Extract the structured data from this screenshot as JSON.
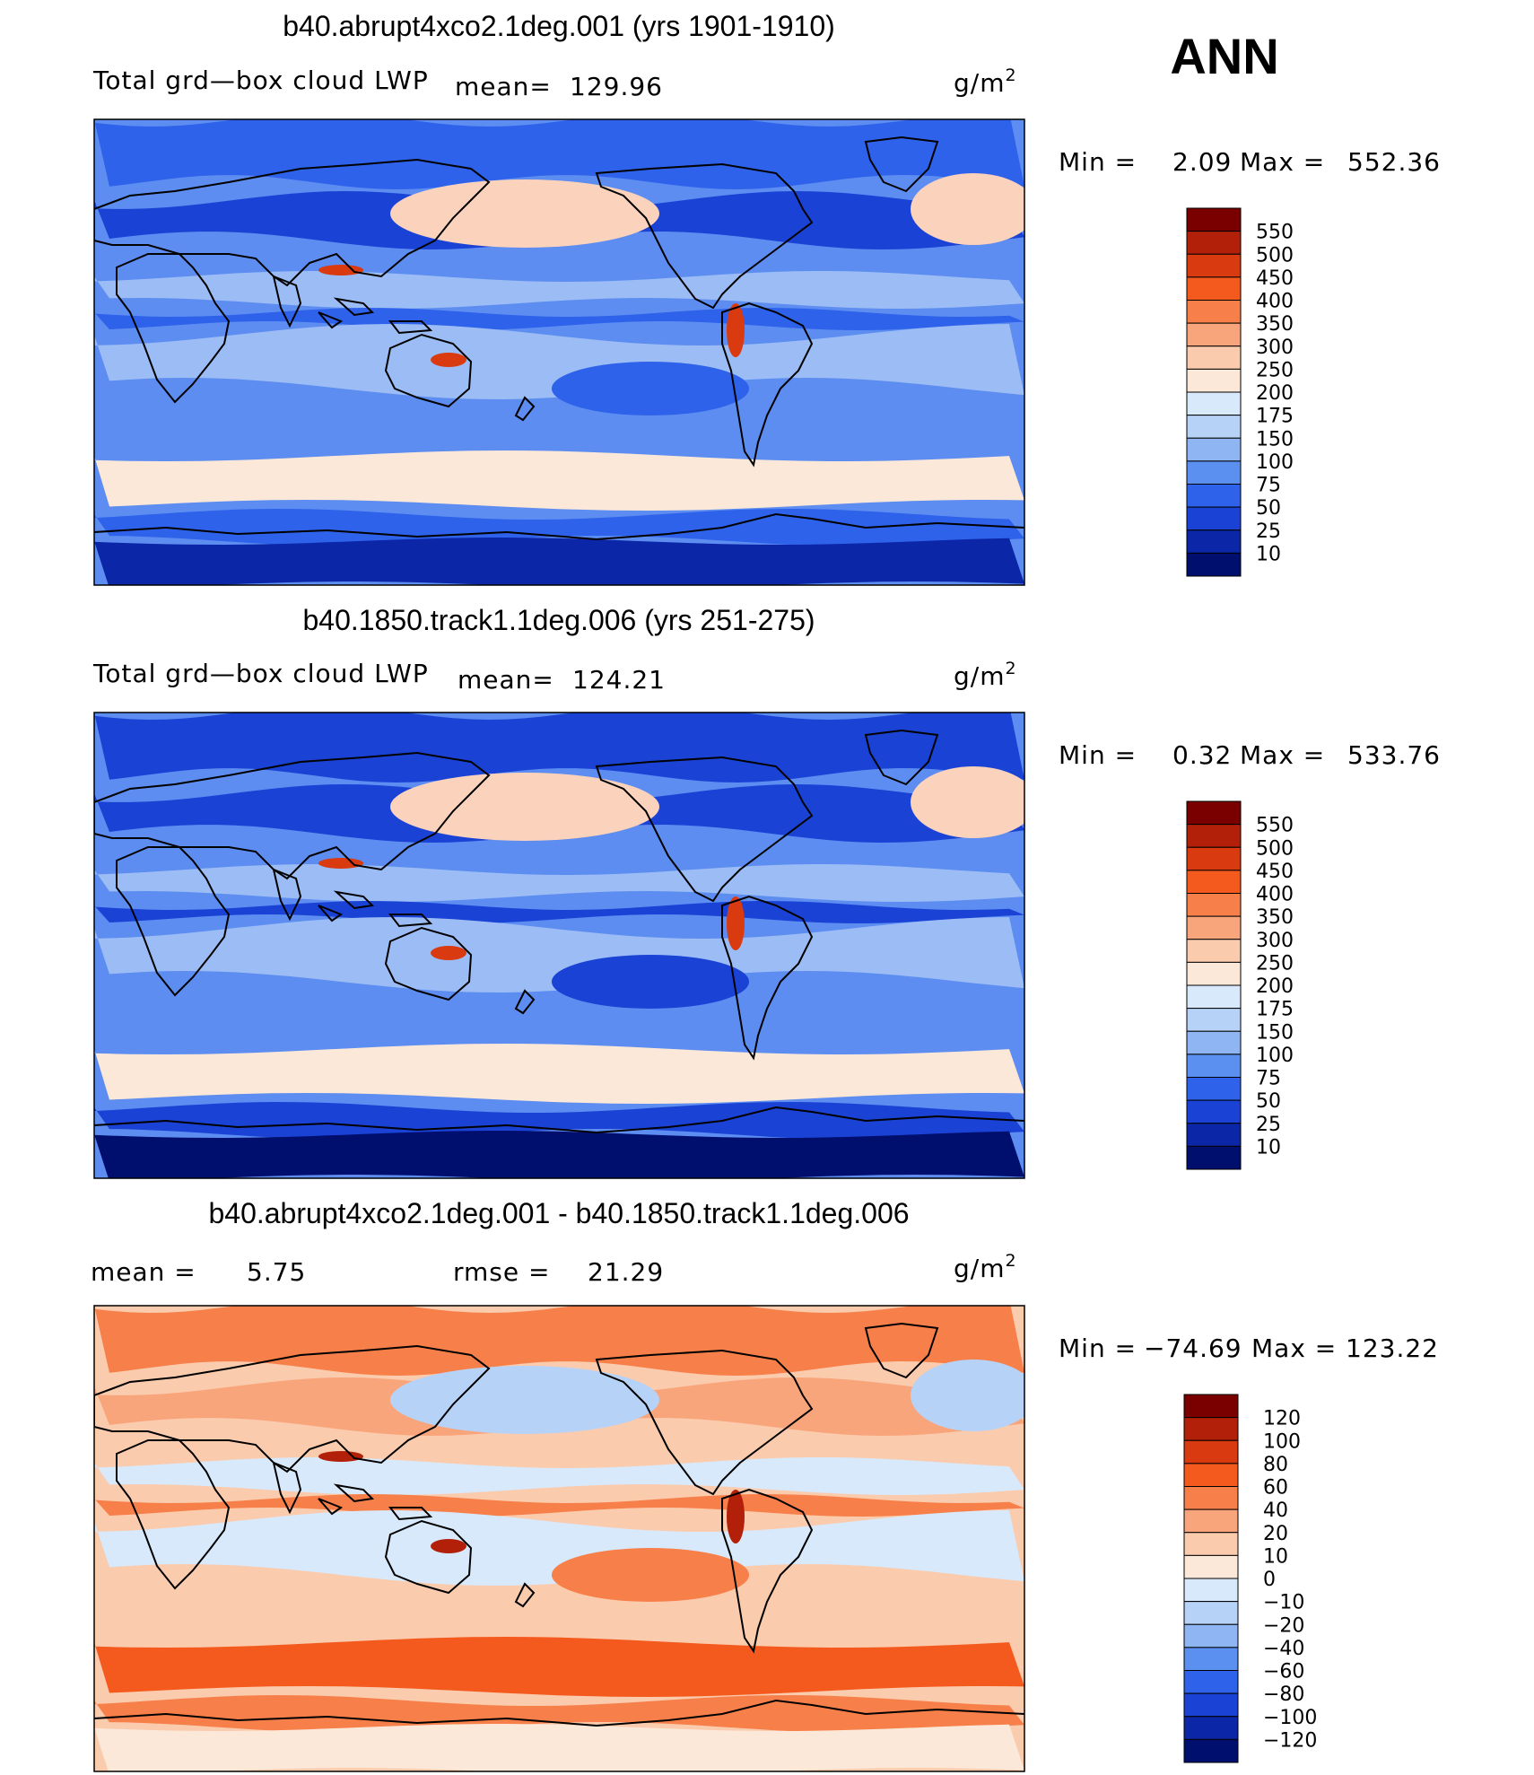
{
  "season": "ANN",
  "panels": [
    {
      "title": "b40.abrupt4xco2.1deg.001 (yrs 1901-1910)",
      "variable": "Total grd—box cloud LWP",
      "mean_label": "mean=",
      "mean_value": "129.96",
      "units_base": "g/m",
      "units_exp": "2",
      "min_label": "Min =",
      "min_value": "2.09",
      "max_label": "Max =",
      "max_value": "552.36",
      "colorbar": {
        "labels": [
          "550",
          "500",
          "450",
          "400",
          "350",
          "300",
          "250",
          "200",
          "175",
          "150",
          "100",
          "75",
          "50",
          "25",
          "10"
        ],
        "colors": [
          "#7a0000",
          "#b3200a",
          "#d93a10",
          "#f45a1e",
          "#f7804a",
          "#f9a57c",
          "#fbcbad",
          "#fbe8d8",
          "#d8e9fb",
          "#b7d2f7",
          "#8fb5f3",
          "#5b8ff0",
          "#2f62ea",
          "#1a43d6",
          "#0b26a6",
          "#000f6e"
        ]
      },
      "map_fields": {
        "ocean_base": "#5d8df0",
        "tropical_band": "#9bbcf4",
        "subtropical_cloud": "#fbd2bc",
        "southern_ocean_band": "#fbe8d8",
        "polar_south": "#0b26a6",
        "equatorial_dark": "#2f62ea",
        "land_dry": "#1a43d6",
        "peak": "#d93a10"
      }
    },
    {
      "title": "b40.1850.track1.1deg.006 (yrs 251-275)",
      "variable": "Total grd—box cloud LWP",
      "mean_label": "mean=",
      "mean_value": "124.21",
      "units_base": "g/m",
      "units_exp": "2",
      "min_label": "Min =",
      "min_value": "0.32",
      "max_label": "Max =",
      "max_value": "533.76",
      "colorbar": {
        "labels": [
          "550",
          "500",
          "450",
          "400",
          "350",
          "300",
          "250",
          "200",
          "175",
          "150",
          "100",
          "75",
          "50",
          "25",
          "10"
        ],
        "colors": [
          "#7a0000",
          "#b3200a",
          "#d93a10",
          "#f45a1e",
          "#f7804a",
          "#f9a57c",
          "#fbcbad",
          "#fbe8d8",
          "#d8e9fb",
          "#b7d2f7",
          "#8fb5f3",
          "#5b8ff0",
          "#2f62ea",
          "#1a43d6",
          "#0b26a6",
          "#000f6e"
        ]
      },
      "map_fields": {
        "ocean_base": "#5d8df0",
        "tropical_band": "#9bbcf4",
        "subtropical_cloud": "#fbd2bc",
        "southern_ocean_band": "#fbe8d8",
        "polar_south": "#000f6e",
        "equatorial_dark": "#1a43d6",
        "land_dry": "#1a43d6",
        "peak": "#d93a10"
      }
    },
    {
      "title": "b40.abrupt4xco2.1deg.001 - b40.1850.track1.1deg.006",
      "mean_label": "mean =",
      "mean_value": "5.75",
      "rmse_label": "rmse =",
      "rmse_value": "21.29",
      "units_base": "g/m",
      "units_exp": "2",
      "min_label": "Min =",
      "min_value": "−74.69",
      "max_label": "Max =",
      "max_value": "123.22",
      "colorbar": {
        "labels": [
          "120",
          "100",
          "80",
          "60",
          "40",
          "20",
          "10",
          "0",
          "−10",
          "−20",
          "−40",
          "−60",
          "−80",
          "−100",
          "−120"
        ],
        "colors": [
          "#7a0000",
          "#b3200a",
          "#d93a10",
          "#f45a1e",
          "#f7804a",
          "#f9a57c",
          "#fbcbad",
          "#fbe8d8",
          "#d8e9fb",
          "#b7d2f7",
          "#8fb5f3",
          "#5b8ff0",
          "#2f62ea",
          "#1a43d6",
          "#0b26a6",
          "#000f6e"
        ]
      },
      "map_fields": {
        "ocean_base": "#fbcbad",
        "tropical_band": "#d8e9fb",
        "subtropical_cloud": "#b7d2f7",
        "southern_ocean_band": "#f45a1e",
        "polar_south": "#fbe8d8",
        "equatorial_dark": "#f7804a",
        "land_dry": "#f9a57c",
        "peak": "#b3200a"
      }
    }
  ]
}
